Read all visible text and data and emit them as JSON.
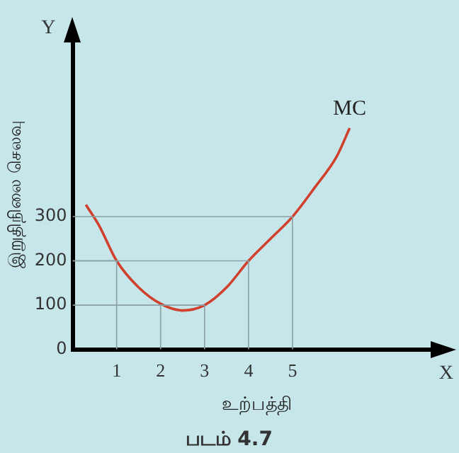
{
  "chart_data": {
    "type": "line",
    "xlabel": "உற்பத்தி",
    "ylabel": "இறுதிநிலை செலவு",
    "annotations": [
      "X",
      "Y",
      "படம் 4.7"
    ],
    "xlim": [
      0,
      8.4
    ],
    "ylim": [
      0,
      700
    ],
    "xticks": [
      1,
      2,
      3,
      4,
      5
    ],
    "yticks": [
      0,
      100,
      200,
      300
    ],
    "legend": false,
    "marker": "none",
    "line_style": "solid",
    "series": [
      {
        "color": "#8aa0a4",
        "x": [
          0,
          1,
          1
        ],
        "values": [
          200,
          200,
          0
        ]
      },
      {
        "color": "#8aa0a4",
        "x": [
          0,
          2,
          2
        ],
        "values": [
          100,
          100,
          0
        ]
      },
      {
        "color": "#8aa0a4",
        "x": [
          2,
          3,
          3
        ],
        "values": [
          100,
          100,
          0
        ]
      },
      {
        "color": "#8aa0a4",
        "x": [
          0,
          4,
          4
        ],
        "values": [
          200,
          200,
          0
        ]
      },
      {
        "color": "#8aa0a4",
        "x": [
          0,
          5,
          5
        ],
        "values": [
          300,
          300,
          0
        ]
      },
      {
        "name": "MC",
        "color": "#d0402c",
        "x": [
          0.3,
          0.6,
          1,
          1.5,
          2,
          2.5,
          3,
          3.5,
          4,
          4.5,
          5,
          5.5,
          6,
          6.3
        ],
        "values": [
          327,
          280,
          200,
          140,
          103,
          88,
          100,
          140,
          200,
          250,
          300,
          365,
          435,
          500
        ]
      }
    ]
  }
}
